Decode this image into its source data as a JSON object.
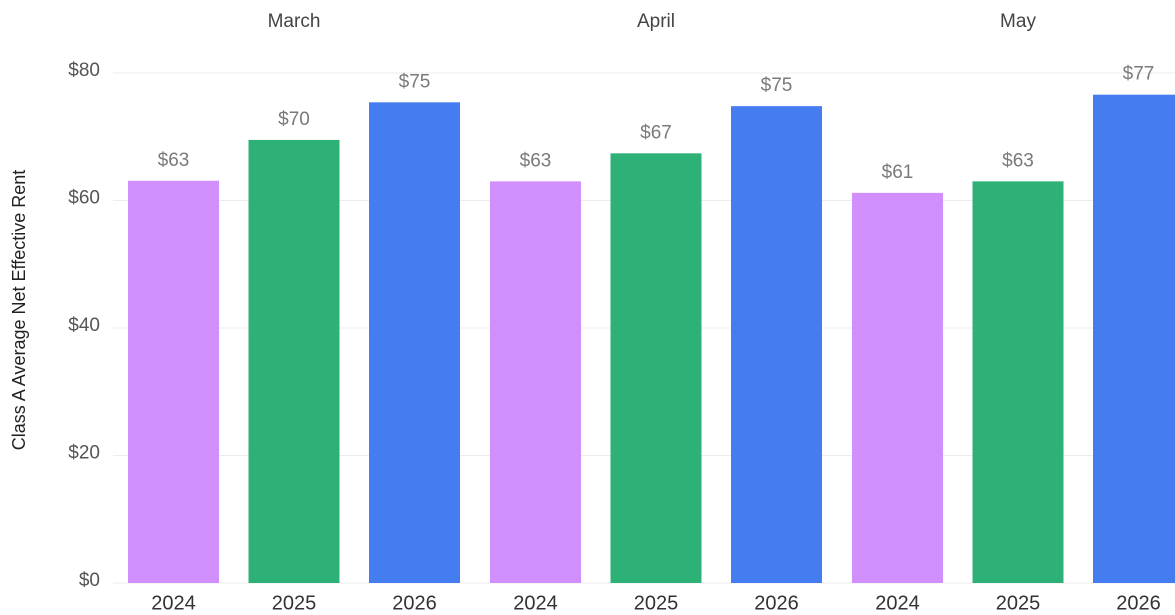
{
  "chart_data": {
    "type": "bar",
    "y_label": "Class A Average Net Effective Rent",
    "categories": [
      "March",
      "April",
      "May"
    ],
    "series": [
      {
        "name": "2024",
        "color": "#d18ffd",
        "values": [
          63.1,
          63,
          61.2
        ],
        "value_labels": [
          "$63",
          "$63",
          "$61"
        ]
      },
      {
        "name": "2025",
        "color": "#2db177",
        "values": [
          69.5,
          67.4,
          63
        ],
        "value_labels": [
          "$70",
          "$67",
          "$63"
        ]
      },
      {
        "name": "2026",
        "color": "#457cf0",
        "values": [
          75.4,
          74.8,
          76.6
        ],
        "value_labels": [
          "$75",
          "$75",
          "$77"
        ]
      }
    ],
    "ylim": [
      0,
      80
    ],
    "yticks": [
      {
        "value": 0,
        "label": "$0"
      },
      {
        "value": 20,
        "label": "$20"
      },
      {
        "value": 40,
        "label": "$40"
      },
      {
        "value": 60,
        "label": "$60"
      },
      {
        "value": 80,
        "label": "$80"
      }
    ],
    "grid": true
  }
}
